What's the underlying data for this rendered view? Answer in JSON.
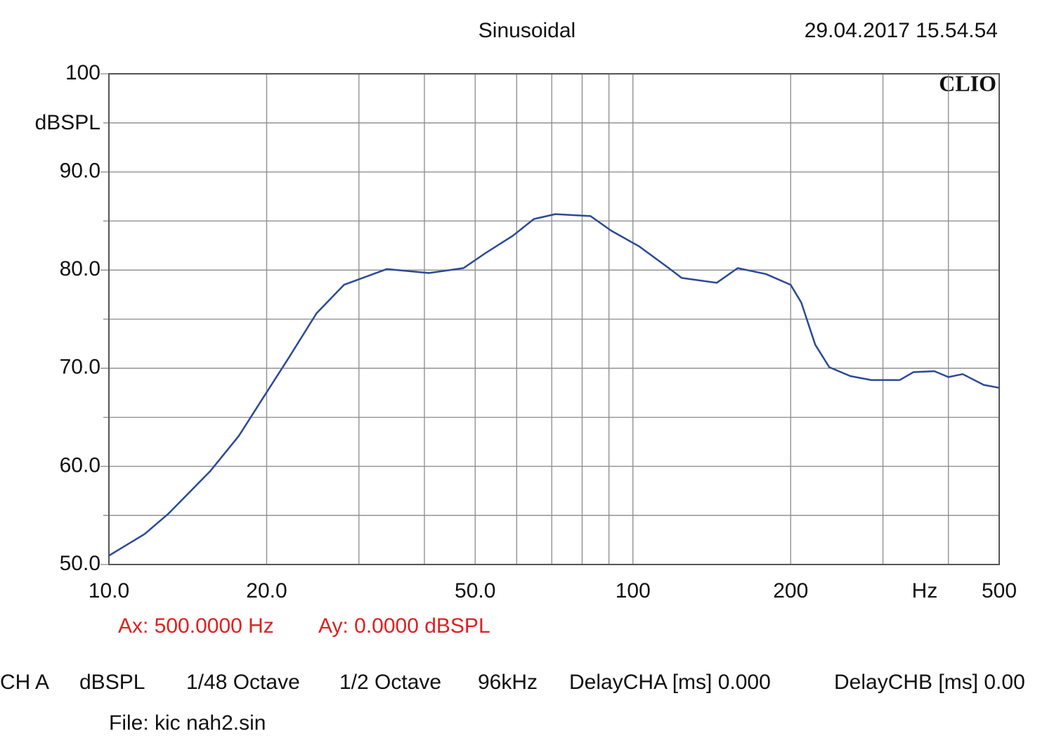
{
  "chart_data": {
    "type": "line",
    "title": "Sinusoidal",
    "timestamp": "29.04.2017 15.54.54",
    "brand": "CLIO",
    "y_label": "dBSPL",
    "x_label": "Hz",
    "log_x": true,
    "grid": true,
    "color": "#2b4a96",
    "xlim": [
      10,
      500
    ],
    "ylim": [
      50,
      100
    ],
    "xticks": [
      {
        "value": 10,
        "label": "10.0"
      },
      {
        "value": 20,
        "label": "20.0"
      },
      {
        "value": 50,
        "label": "50.0"
      },
      100,
      200,
      500
    ],
    "x_minor_grid": [
      30,
      40,
      60,
      70,
      80,
      90,
      300,
      400
    ],
    "yticks": [
      {
        "value": 50,
        "label": "50.0"
      },
      {
        "value": 60,
        "label": "60.0"
      },
      {
        "value": 70,
        "label": "70.0"
      },
      {
        "value": 80,
        "label": "80.0"
      },
      {
        "value": 90,
        "label": "90.0"
      },
      100
    ],
    "y_minor_grid": [
      55,
      65,
      75,
      85,
      95
    ],
    "x": [
      10,
      11.7,
      13,
      15.6,
      17.7,
      19.7,
      22,
      24.9,
      28.1,
      33.9,
      40.8,
      47.5,
      52.2,
      59,
      64.7,
      71.1,
      83,
      91,
      102.9,
      116.4,
      123.9,
      144.5,
      158.5,
      179.4,
      200,
      209.5,
      222.8,
      237,
      260,
      285,
      323,
      343,
      376,
      400,
      426,
      467,
      500
    ],
    "values": [
      50.9,
      53.1,
      55.2,
      59.5,
      63.1,
      67.0,
      71.0,
      75.6,
      78.5,
      80.1,
      79.7,
      80.2,
      81.7,
      83.5,
      85.2,
      85.7,
      85.5,
      84.0,
      82.4,
      80.3,
      79.2,
      78.7,
      80.2,
      79.6,
      78.5,
      76.7,
      72.4,
      70.1,
      69.2,
      68.8,
      68.8,
      69.6,
      69.7,
      69.1,
      69.4,
      68.3,
      68.0
    ],
    "cursor": [
      "Ax: 500.0000 Hz",
      "Ay: 0.0000 dBSPL"
    ],
    "info": [
      "CH A",
      "dBSPL",
      "1/48 Octave",
      "1/2 Octave",
      "96kHz",
      "DelayCHA [ms] 0.000",
      "DelayCHB [ms] 0.00"
    ],
    "file": "File: kic nah2.sin"
  }
}
